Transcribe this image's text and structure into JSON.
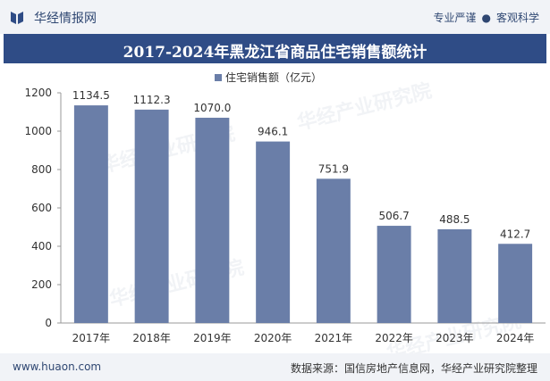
{
  "header": {
    "brand": "华经情报网",
    "tag_left": "专业严谨",
    "tag_sep": "●",
    "tag_right": "客观科学"
  },
  "watermark": "华经产业研究院",
  "chart_data": {
    "type": "bar",
    "title": "2017-2024年黑龙江省商品住宅销售额统计",
    "categories": [
      "2017年",
      "2018年",
      "2019年",
      "2020年",
      "2021年",
      "2022年",
      "2023年",
      "2024年"
    ],
    "series": [
      {
        "name": "住宅销售额（亿元）",
        "values": [
          1134.5,
          1112.3,
          1070.0,
          946.1,
          751.9,
          506.7,
          488.5,
          412.7
        ],
        "labels": [
          "1134.5",
          "1112.3",
          "1070.0",
          "946.1",
          "751.9",
          "506.7",
          "488.5",
          "412.7"
        ],
        "color": "#6a7ea8"
      }
    ],
    "ylim": [
      0,
      1200
    ],
    "yticks": [
      0,
      200,
      400,
      600,
      800,
      1000,
      1200
    ],
    "xlabel": "",
    "ylabel": "",
    "grid": false,
    "legend_position": "top-center"
  },
  "footer": {
    "website": "www.huaon.com",
    "source": "数据来源：国信房地产信息网，华经产业研究院整理"
  }
}
